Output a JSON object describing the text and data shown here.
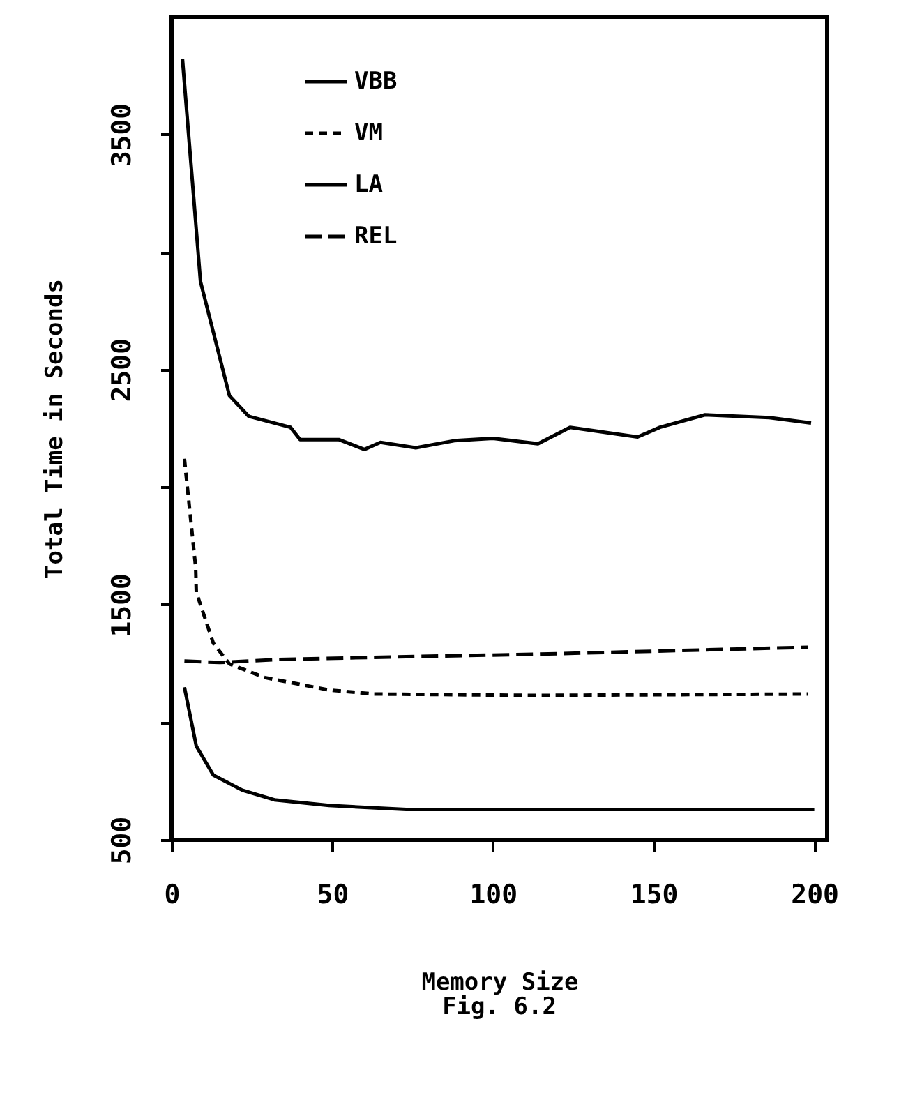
{
  "chart_data": {
    "type": "line",
    "xlabel": "Memory Size",
    "ylabel": "Total Time in Seconds",
    "annotations": [
      "Fig. 6.2"
    ],
    "xlim": [
      0,
      204
    ],
    "ylim": [
      500,
      4000
    ],
    "xticks": [
      0,
      50,
      100,
      150,
      200
    ],
    "yticks": [
      500,
      {
        "value": 1000,
        "label": null
      },
      1500,
      {
        "value": 2000,
        "label": null
      },
      2500,
      {
        "value": 3000,
        "label": null
      },
      3500
    ],
    "grid": false,
    "legend": "top",
    "marker": "none",
    "series": [
      {
        "name": "VBB",
        "color": "#000000",
        "line_style": "solid",
        "x": [
          3.4,
          9,
          18,
          24,
          37,
          40,
          52,
          60,
          65,
          76,
          88,
          100,
          114,
          124,
          145,
          152,
          166,
          186,
          199
        ],
        "values": [
          3820,
          2874,
          2389,
          2301,
          2254,
          2202,
          2202,
          2160,
          2190,
          2167,
          2197,
          2207,
          2184,
          2254,
          2213,
          2254,
          2307,
          2295,
          2272
        ]
      },
      {
        "name": "VM",
        "color": "#000000",
        "line_style": "dashed",
        "x": [
          4,
          7.5,
          7.7,
          13,
          18,
          29,
          49,
          63,
          113,
          198
        ],
        "values": [
          2120,
          1658,
          1553,
          1336,
          1248,
          1190,
          1137,
          1120,
          1114,
          1120
        ]
      },
      {
        "name": "LA",
        "color": "#000000",
        "line_style": "solid",
        "x": [
          4,
          7.7,
          13,
          22,
          32,
          49,
          73,
          200
        ],
        "values": [
          1149,
          898,
          775,
          711,
          670,
          646,
          629,
          629
        ]
      },
      {
        "name": "REL",
        "color": "#000000",
        "line_style": "dashed",
        "x": [
          4,
          15,
          32,
          70,
          113,
          198
        ],
        "values": [
          1260,
          1254,
          1266,
          1278,
          1289,
          1319
        ]
      }
    ]
  }
}
